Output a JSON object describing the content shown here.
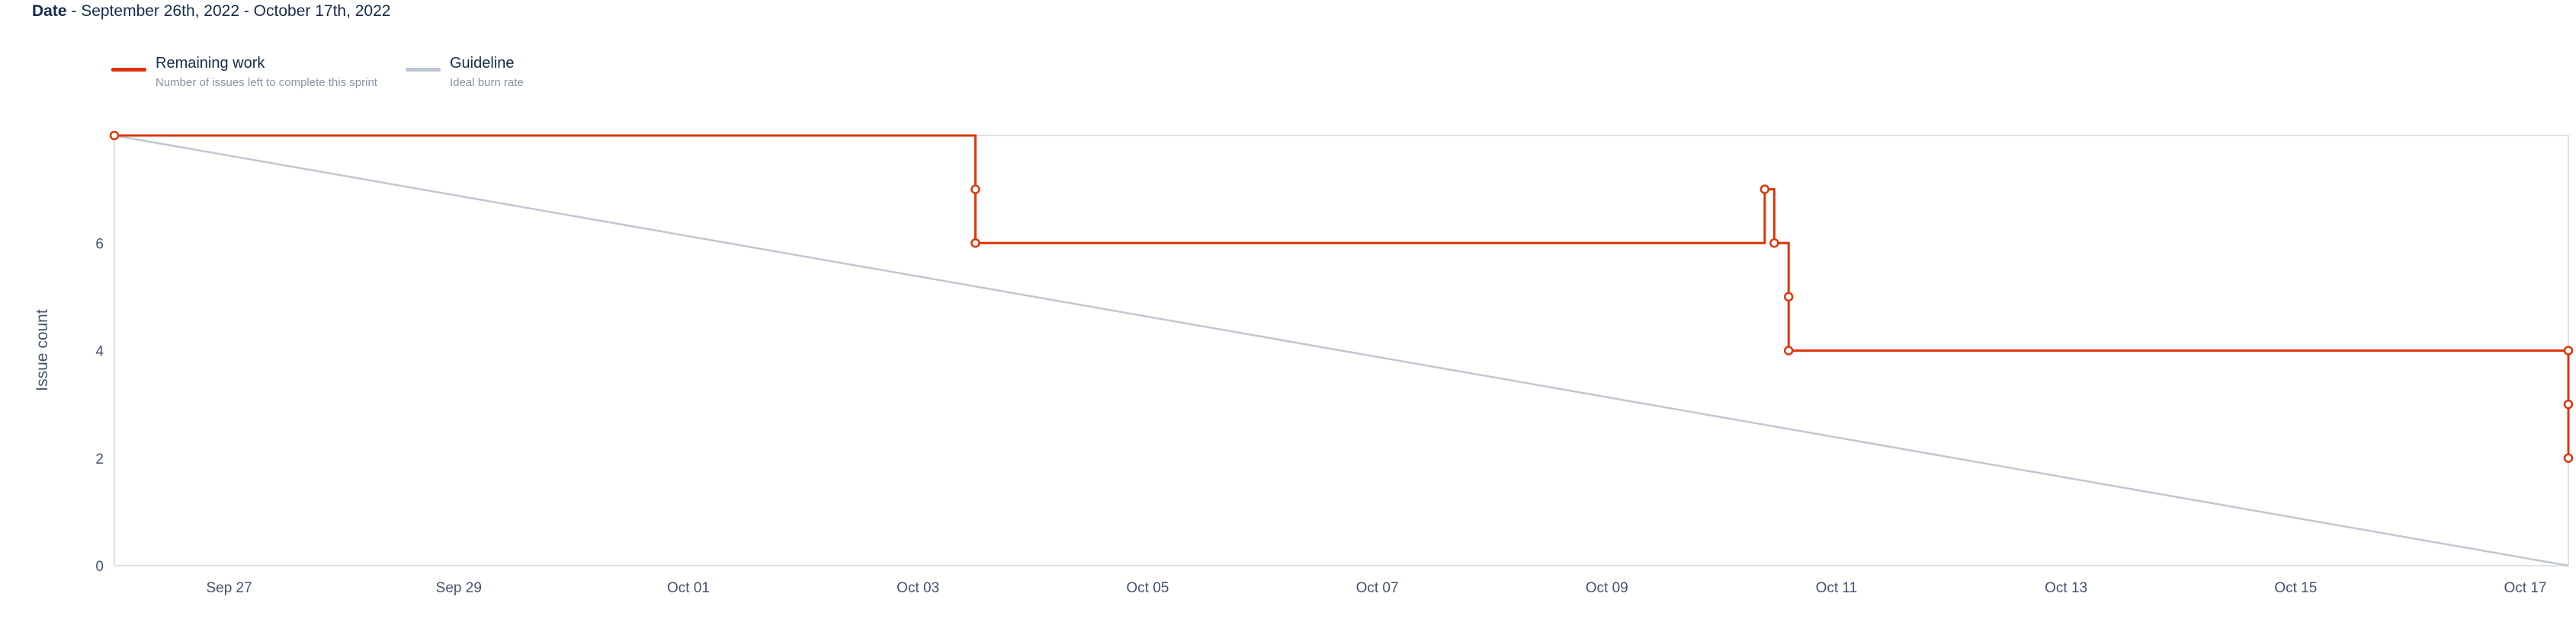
{
  "header": {
    "date_key": "Date",
    "date_range": " - September 26th, 2022 - October 17th, 2022"
  },
  "legend": [
    {
      "name": "Remaining work",
      "description": "Number of issues left to complete this sprint",
      "color": "#de350b"
    },
    {
      "name": "Guideline",
      "description": "Ideal burn rate",
      "color": "#c1c7d0"
    }
  ],
  "chart_data": {
    "type": "line",
    "ylabel": "Issue count",
    "xlabel": "",
    "x_type": "date",
    "xlim": [
      "2022-09-26 00:00",
      "2022-10-17 09:00"
    ],
    "ylim": [
      0,
      8
    ],
    "x_ticks": [
      {
        "label": "Sep 27",
        "date": "2022-09-27"
      },
      {
        "label": "Sep 29",
        "date": "2022-09-29"
      },
      {
        "label": "Oct 01",
        "date": "2022-10-01"
      },
      {
        "label": "Oct 03",
        "date": "2022-10-03"
      },
      {
        "label": "Oct 05",
        "date": "2022-10-05"
      },
      {
        "label": "Oct 07",
        "date": "2022-10-07"
      },
      {
        "label": "Oct 09",
        "date": "2022-10-09"
      },
      {
        "label": "Oct 11",
        "date": "2022-10-11"
      },
      {
        "label": "Oct 13",
        "date": "2022-10-13"
      },
      {
        "label": "Oct 15",
        "date": "2022-10-15"
      },
      {
        "label": "Oct 17",
        "date": "2022-10-17"
      }
    ],
    "y_ticks": [
      0,
      2,
      4,
      6
    ],
    "grid": false,
    "series": [
      {
        "name": "Remaining work",
        "color": "#de350b",
        "step": true,
        "points": [
          {
            "x": "2022-09-26 00:00",
            "y": 8
          },
          {
            "x": "2022-10-03 12:00",
            "y": 7
          },
          {
            "x": "2022-10-03 12:00",
            "y": 6
          },
          {
            "x": "2022-10-10 09:00",
            "y": 7
          },
          {
            "x": "2022-10-10 11:00",
            "y": 6
          },
          {
            "x": "2022-10-10 14:00",
            "y": 5
          },
          {
            "x": "2022-10-10 14:00",
            "y": 4
          },
          {
            "x": "2022-10-17 09:00",
            "y": 4
          },
          {
            "x": "2022-10-17 09:00",
            "y": 3
          },
          {
            "x": "2022-10-17 09:00",
            "y": 2
          }
        ]
      },
      {
        "name": "Guideline",
        "color": "#c1c7d0",
        "step": false,
        "points": [
          {
            "x": "2022-09-26 00:00",
            "y": 8
          },
          {
            "x": "2022-10-17 09:00",
            "y": 0
          }
        ]
      }
    ]
  }
}
